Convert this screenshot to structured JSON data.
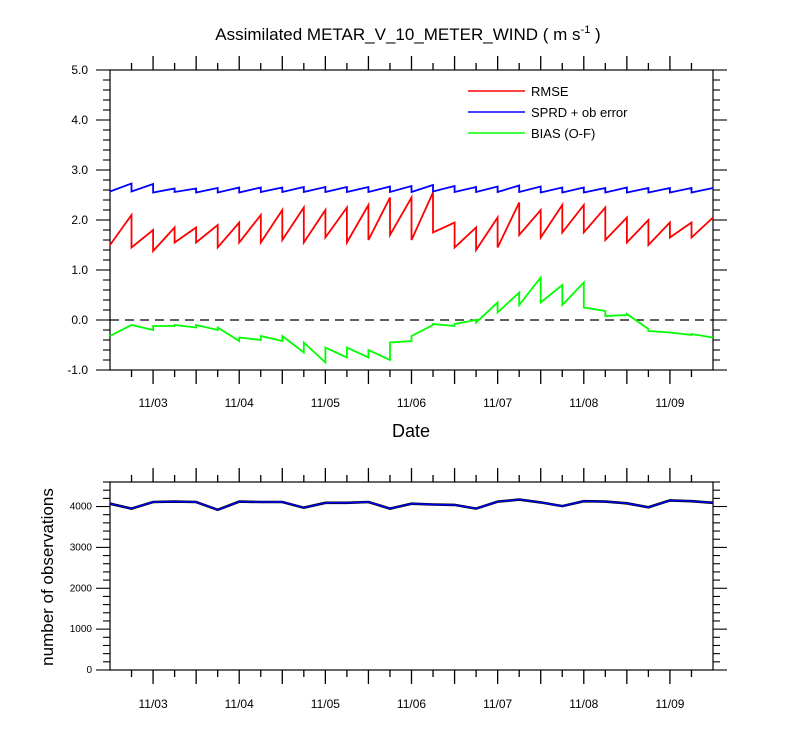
{
  "chart_data": [
    {
      "type": "line",
      "title": "Assimilated METAR_V_10_METER_WIND ( m s",
      "title_sup": "-1",
      "title_end": " )",
      "xlabel": "Date",
      "ylabel": "",
      "ylim": [
        -1.0,
        5.0
      ],
      "yticks": [
        "5.0",
        "4.0",
        "3.0",
        "2.0",
        "1.0",
        "0.0",
        "-1.0"
      ],
      "xticks": [
        "11/03",
        "11/04",
        "11/05",
        "11/06",
        "11/07",
        "11/08",
        "11/09"
      ],
      "reference_line": 0.0,
      "legend_position": "top-right",
      "grid": false,
      "series": [
        {
          "name": "RMSE",
          "color": "#ff0000",
          "x": [
            0,
            0.25,
            0.25,
            0.5,
            0.5,
            0.75,
            0.75,
            1.0,
            1.0,
            1.25,
            1.25,
            1.5,
            1.5,
            1.75,
            1.75,
            2.0,
            2.0,
            2.25,
            2.25,
            2.5,
            2.5,
            2.75,
            2.75,
            3.0,
            3.0,
            3.25,
            3.25,
            3.5,
            3.5,
            3.75,
            3.75,
            4.0,
            4.0,
            4.25,
            4.25,
            4.5,
            4.5,
            4.75,
            4.75,
            5.0,
            5.0,
            5.25,
            5.25,
            5.5,
            5.5,
            5.75,
            5.75,
            6.0,
            6.0,
            6.25,
            6.25,
            6.5,
            6.5,
            6.75,
            6.75,
            7.0,
            7.0
          ],
          "y": [
            1.5,
            2.1,
            1.45,
            1.8,
            1.38,
            1.85,
            1.55,
            1.85,
            1.55,
            1.9,
            1.45,
            1.95,
            1.55,
            2.1,
            1.55,
            2.2,
            1.6,
            2.25,
            1.55,
            2.2,
            1.65,
            2.25,
            1.55,
            2.3,
            1.6,
            2.45,
            1.7,
            2.45,
            1.6,
            2.55,
            1.75,
            1.95,
            1.45,
            1.85,
            1.4,
            2.05,
            1.45,
            2.35,
            1.7,
            2.2,
            1.65,
            2.3,
            1.75,
            2.3,
            1.75,
            2.25,
            1.6,
            2.05,
            1.55,
            2.0,
            1.5,
            1.95,
            1.65,
            1.95,
            1.65,
            2.05,
            2.05
          ]
        },
        {
          "name": "SPRD + ob error",
          "color": "#0000ff",
          "x": [
            0,
            0.25,
            0.25,
            0.5,
            0.5,
            0.75,
            0.75,
            1.0,
            1.0,
            1.25,
            1.25,
            1.5,
            1.5,
            1.75,
            1.75,
            2.0,
            2.0,
            2.25,
            2.25,
            2.5,
            2.5,
            2.75,
            2.75,
            3.0,
            3.0,
            3.25,
            3.25,
            3.5,
            3.5,
            3.75,
            3.75,
            4.0,
            4.0,
            4.25,
            4.25,
            4.5,
            4.5,
            4.75,
            4.75,
            5.0,
            5.0,
            5.25,
            5.25,
            5.5,
            5.5,
            5.75,
            5.75,
            6.0,
            6.0,
            6.25,
            6.25,
            6.5,
            6.5,
            6.75,
            6.75,
            7.0,
            7.0
          ],
          "y": [
            2.57,
            2.73,
            2.57,
            2.72,
            2.55,
            2.63,
            2.56,
            2.63,
            2.55,
            2.64,
            2.55,
            2.65,
            2.55,
            2.65,
            2.56,
            2.65,
            2.56,
            2.66,
            2.56,
            2.66,
            2.56,
            2.66,
            2.56,
            2.66,
            2.56,
            2.67,
            2.56,
            2.68,
            2.56,
            2.7,
            2.57,
            2.68,
            2.56,
            2.66,
            2.56,
            2.67,
            2.56,
            2.69,
            2.56,
            2.67,
            2.55,
            2.65,
            2.55,
            2.65,
            2.55,
            2.64,
            2.55,
            2.65,
            2.55,
            2.64,
            2.55,
            2.64,
            2.55,
            2.64,
            2.55,
            2.64,
            2.64
          ]
        },
        {
          "name": "BIAS (O-F)",
          "color": "#00ff00",
          "x": [
            0,
            0.25,
            0.25,
            0.5,
            0.5,
            0.75,
            0.75,
            1.0,
            1.0,
            1.25,
            1.25,
            1.5,
            1.5,
            1.75,
            1.75,
            2.0,
            2.0,
            2.25,
            2.25,
            2.5,
            2.5,
            2.75,
            2.75,
            3.0,
            3.0,
            3.25,
            3.25,
            3.5,
            3.5,
            3.75,
            3.75,
            4.0,
            4.0,
            4.25,
            4.25,
            4.5,
            4.5,
            4.75,
            4.75,
            5.0,
            5.0,
            5.25,
            5.25,
            5.5,
            5.5,
            5.75,
            5.75,
            6.0,
            6.0,
            6.25,
            6.25,
            6.5,
            6.5,
            6.75,
            6.75,
            7.0
          ],
          "y": [
            -0.32,
            -0.1,
            -0.1,
            -0.2,
            -0.12,
            -0.12,
            -0.1,
            -0.15,
            -0.1,
            -0.2,
            -0.15,
            -0.42,
            -0.35,
            -0.4,
            -0.32,
            -0.42,
            -0.32,
            -0.65,
            -0.45,
            -0.85,
            -0.55,
            -0.75,
            -0.55,
            -0.75,
            -0.6,
            -0.8,
            -0.45,
            -0.42,
            -0.32,
            -0.1,
            -0.08,
            -0.12,
            -0.08,
            0.0,
            -0.05,
            0.35,
            0.15,
            0.55,
            0.3,
            0.85,
            0.35,
            0.7,
            0.3,
            0.75,
            0.25,
            0.18,
            0.08,
            0.1,
            0.12,
            -0.18,
            -0.22,
            -0.25,
            -0.25,
            -0.3,
            -0.28,
            -0.35
          ]
        }
      ]
    },
    {
      "type": "line",
      "title": "",
      "xlabel": "",
      "ylabel": "number of observations",
      "ylim": [
        0,
        4600
      ],
      "yticks": [
        "4000",
        "3000",
        "2000",
        "1000",
        "0"
      ],
      "xticks": [
        "11/03",
        "11/04",
        "11/05",
        "11/06",
        "11/07",
        "11/08",
        "11/09"
      ],
      "grid": false,
      "series": [
        {
          "color": "#0000ff",
          "x": [
            0,
            0.25,
            0.5,
            0.75,
            1.0,
            1.25,
            1.5,
            1.75,
            2.0,
            2.25,
            2.5,
            2.75,
            3.0,
            3.25,
            3.5,
            3.75,
            4.0,
            4.25,
            4.5,
            4.75,
            5.0,
            5.25,
            5.5,
            5.75,
            6.0,
            6.25,
            6.5,
            6.75,
            7.0
          ],
          "y": [
            4070,
            3950,
            4110,
            4120,
            4110,
            3920,
            4120,
            4110,
            4110,
            3970,
            4090,
            4090,
            4110,
            3950,
            4070,
            4050,
            4040,
            3950,
            4120,
            4170,
            4100,
            4010,
            4130,
            4120,
            4080,
            3980,
            4150,
            4130,
            4090
          ]
        }
      ]
    }
  ]
}
